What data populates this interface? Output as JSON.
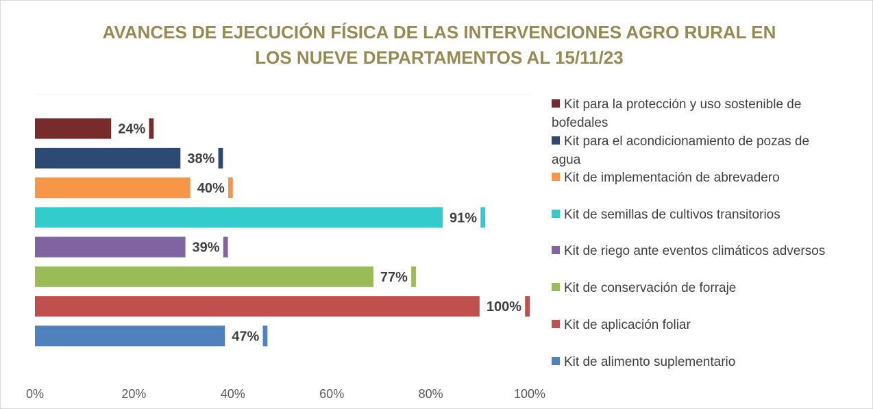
{
  "chart_data": {
    "type": "barh",
    "title": "AVANCES DE EJECUCIÓN FÍSICA DE LAS INTERVENCIONES AGRO RURAL EN LOS NUEVE DEPARTAMENTOS AL 15/11/23",
    "categories": [
      "Kit para la protección y uso sostenible de bofedales",
      "Kit para el acondicionamiento de pozas de agua",
      "Kit de implementación de abrevadero",
      "Kit de semillas de cultivos transitorios",
      "Kit de riego ante eventos climáticos adversos",
      "Kit de conservación de forraje",
      "Kit de aplicación foliar",
      "Kit de alimento suplementario"
    ],
    "values": [
      24,
      38,
      40,
      91,
      39,
      77,
      100,
      47
    ],
    "value_labels": [
      "24%",
      "38%",
      "40%",
      "91%",
      "39%",
      "77%",
      "100%",
      "47%"
    ],
    "colors": [
      "#772b2b",
      "#2c4a74",
      "#f79646",
      "#33cccc",
      "#8064a2",
      "#9bbb59",
      "#c0504d",
      "#4f81bd"
    ],
    "xlim": [
      0,
      100
    ],
    "xticks": [
      {
        "value": 0,
        "label": "0%"
      },
      {
        "value": 20,
        "label": "20%"
      },
      {
        "value": 40,
        "label": "40%"
      },
      {
        "value": 60,
        "label": "60%"
      },
      {
        "value": 80,
        "label": "80%"
      },
      {
        "value": 100,
        "label": "100%"
      }
    ],
    "grid": false,
    "legend": "right"
  }
}
